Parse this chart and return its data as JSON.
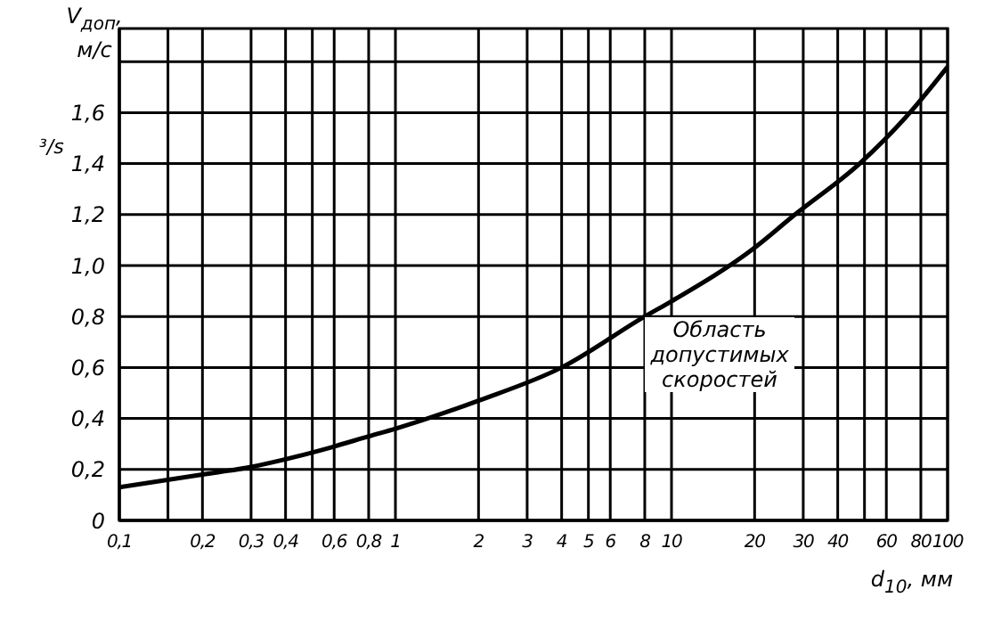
{
  "chart_data": {
    "type": "line",
    "xlabel": "d$_{10}$, мм",
    "ylabel": "V$_{доп}$, м/с",
    "log": "x",
    "grid": true,
    "marker": "none",
    "line_style": "solid",
    "x": [
      0.1,
      0.2,
      0.3,
      0.4,
      0.6,
      0.8,
      1,
      2,
      4,
      8,
      10,
      20,
      28,
      48,
      73,
      100
    ],
    "series": [
      {
        "color": "#000000",
        "values": [
          0.13,
          0.18,
          0.21,
          0.24,
          0.29,
          0.33,
          0.36,
          0.47,
          0.6,
          0.8,
          0.86,
          1.07,
          1.2,
          1.4,
          1.6,
          1.78
        ]
      }
    ],
    "xlim": [
      0.1,
      100
    ],
    "xticks": [
      {
        "value": 0.1,
        "label": "0,1"
      },
      {
        "value": 0.15,
        "label": null
      },
      {
        "value": 0.2,
        "label": "0,2"
      },
      {
        "value": 0.3,
        "label": "0,3"
      },
      {
        "value": 0.4,
        "label": "0,4"
      },
      {
        "value": 0.5,
        "label": null
      },
      {
        "value": 0.6,
        "label": "0,6"
      },
      {
        "value": 0.8,
        "label": "0,8"
      },
      1,
      2,
      3,
      4,
      5,
      6,
      8,
      10,
      20,
      30,
      40,
      {
        "value": 50,
        "label": null
      },
      60,
      80,
      100
    ],
    "ylim": [
      0,
      1.93
    ],
    "yticks": [
      0,
      {
        "value": 0.2,
        "label": "0,2"
      },
      {
        "value": 0.4,
        "label": "0,4"
      },
      {
        "value": 0.6,
        "label": "0,6"
      },
      {
        "value": 0.8,
        "label": "0,8"
      },
      {
        "value": 1,
        "label": "1,0"
      },
      {
        "value": 1.2,
        "label": "1,2"
      },
      {
        "value": 1.4,
        "label": "1,4"
      },
      {
        "value": 1.6,
        "label": "1,6"
      },
      {
        "value": 1.8,
        "label": null
      }
    ],
    "annotations": [
      "Область допустимых скоростей",
      "³/s"
    ]
  }
}
